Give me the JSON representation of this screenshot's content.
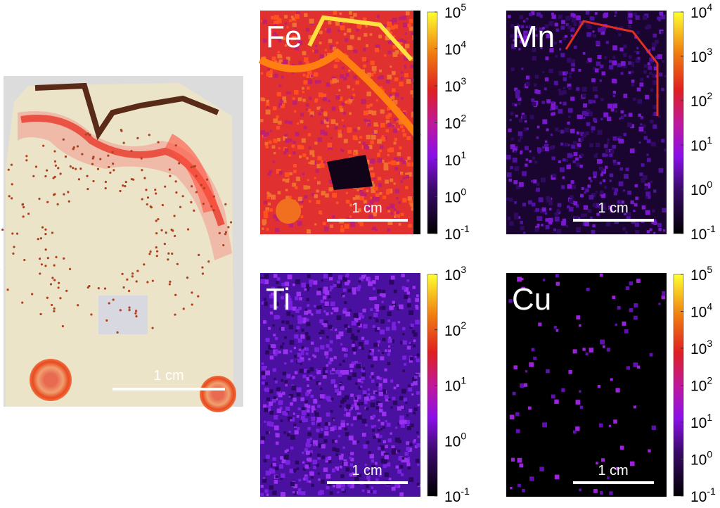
{
  "photo": {
    "scale_label": "1 cm"
  },
  "maps": [
    {
      "element": "Fe",
      "scale_label": "1 cm",
      "colorbar_ticks": [
        {
          "base": "10",
          "exponent": "5"
        },
        {
          "base": "10",
          "exponent": "4"
        },
        {
          "base": "10",
          "exponent": "3"
        },
        {
          "base": "10",
          "exponent": "2"
        },
        {
          "base": "10",
          "exponent": "1"
        },
        {
          "base": "10",
          "exponent": "0"
        },
        {
          "base": "10",
          "exponent": "-1"
        }
      ]
    },
    {
      "element": "Mn",
      "scale_label": "1 cm",
      "colorbar_ticks": [
        {
          "base": "10",
          "exponent": "4"
        },
        {
          "base": "10",
          "exponent": "3"
        },
        {
          "base": "10",
          "exponent": "2"
        },
        {
          "base": "10",
          "exponent": "1"
        },
        {
          "base": "10",
          "exponent": "0"
        },
        {
          "base": "10",
          "exponent": "-1"
        }
      ]
    },
    {
      "element": "Ti",
      "scale_label": "1 cm",
      "colorbar_ticks": [
        {
          "base": "10",
          "exponent": "3"
        },
        {
          "base": "10",
          "exponent": "2"
        },
        {
          "base": "10",
          "exponent": "1"
        },
        {
          "base": "10",
          "exponent": "0"
        },
        {
          "base": "10",
          "exponent": "-1"
        }
      ]
    },
    {
      "element": "Cu",
      "scale_label": "1 cm",
      "colorbar_ticks": [
        {
          "base": "10",
          "exponent": "5"
        },
        {
          "base": "10",
          "exponent": "4"
        },
        {
          "base": "10",
          "exponent": "3"
        },
        {
          "base": "10",
          "exponent": "2"
        },
        {
          "base": "10",
          "exponent": "1"
        },
        {
          "base": "10",
          "exponent": "0"
        },
        {
          "base": "10",
          "exponent": "-1"
        }
      ]
    }
  ]
}
